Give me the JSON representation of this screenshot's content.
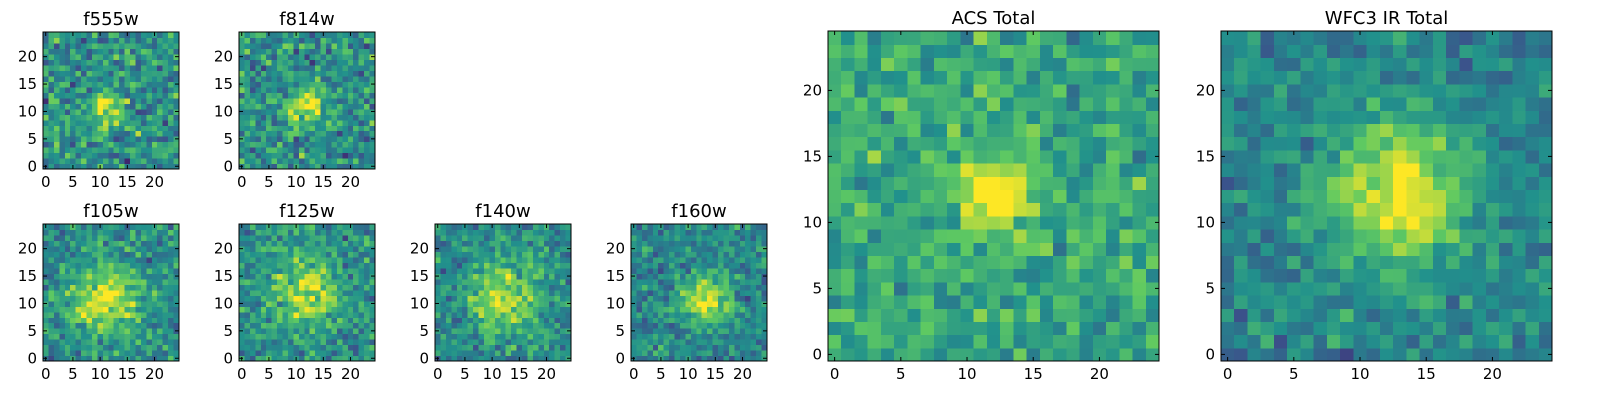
{
  "figure": {
    "colormap": "viridis",
    "colormap_stops": [
      "#440154",
      "#3b528b",
      "#21918c",
      "#5ec962",
      "#fde725"
    ]
  },
  "chart_data": [
    {
      "id": "f555w",
      "type": "heatmap",
      "title": "f555w",
      "size": 25,
      "xlim": [
        0,
        24
      ],
      "ylim": [
        0,
        24
      ],
      "xticks": [
        0,
        5,
        10,
        15,
        20
      ],
      "yticks": [
        0,
        5,
        10,
        15,
        20
      ],
      "source_center": [
        11,
        11
      ],
      "source_sigma": 2.2,
      "source_peak": 0.4,
      "noise_center": 0.5,
      "noise_scale": 0.42,
      "seed": 11
    },
    {
      "id": "f814w",
      "type": "heatmap",
      "title": "f814w",
      "size": 25,
      "xlim": [
        0,
        24
      ],
      "ylim": [
        0,
        24
      ],
      "xticks": [
        0,
        5,
        10,
        15,
        20
      ],
      "yticks": [
        0,
        5,
        10,
        15,
        20
      ],
      "source_center": [
        12,
        11
      ],
      "source_sigma": 2.3,
      "source_peak": 0.45,
      "noise_center": 0.5,
      "noise_scale": 0.4,
      "seed": 23
    },
    {
      "id": "f105w",
      "type": "heatmap",
      "title": "f105w",
      "size": 25,
      "xlim": [
        0,
        24
      ],
      "ylim": [
        0,
        24
      ],
      "xticks": [
        0,
        5,
        10,
        15,
        20
      ],
      "yticks": [
        0,
        5,
        10,
        15,
        20
      ],
      "source_center": [
        11,
        11
      ],
      "source_sigma": 4.5,
      "source_peak": 0.45,
      "noise_center": 0.48,
      "noise_scale": 0.34,
      "seed": 37
    },
    {
      "id": "f125w",
      "type": "heatmap",
      "title": "f125w",
      "size": 25,
      "xlim": [
        0,
        24
      ],
      "ylim": [
        0,
        24
      ],
      "xticks": [
        0,
        5,
        10,
        15,
        20
      ],
      "yticks": [
        0,
        5,
        10,
        15,
        20
      ],
      "source_center": [
        12,
        12
      ],
      "source_sigma": 4.0,
      "source_peak": 0.4,
      "noise_center": 0.5,
      "noise_scale": 0.34,
      "seed": 41
    },
    {
      "id": "f140w",
      "type": "heatmap",
      "title": "f140w",
      "size": 25,
      "xlim": [
        0,
        24
      ],
      "ylim": [
        0,
        24
      ],
      "xticks": [
        0,
        5,
        10,
        15,
        20
      ],
      "yticks": [
        0,
        5,
        10,
        15,
        20
      ],
      "source_center": [
        12,
        11
      ],
      "source_sigma": 4.3,
      "source_peak": 0.42,
      "noise_center": 0.48,
      "noise_scale": 0.32,
      "seed": 53
    },
    {
      "id": "f160w",
      "type": "heatmap",
      "title": "f160w",
      "size": 25,
      "xlim": [
        0,
        24
      ],
      "ylim": [
        0,
        24
      ],
      "xticks": [
        0,
        5,
        10,
        15,
        20
      ],
      "yticks": [
        0,
        5,
        10,
        15,
        20
      ],
      "source_center": [
        13,
        11
      ],
      "source_sigma": 3.0,
      "source_peak": 0.5,
      "noise_center": 0.47,
      "noise_scale": 0.3,
      "seed": 67
    },
    {
      "id": "acs-total",
      "type": "heatmap",
      "title": "ACS Total",
      "size": 25,
      "xlim": [
        0,
        24
      ],
      "ylim": [
        0,
        24
      ],
      "xticks": [
        0,
        5,
        10,
        15,
        20
      ],
      "yticks": [
        0,
        5,
        10,
        15,
        20
      ],
      "source_center": [
        12,
        12
      ],
      "source_sigma": 1.8,
      "source_peak": 0.55,
      "noise_center": 0.6,
      "noise_scale": 0.3,
      "seed": 79
    },
    {
      "id": "wfc3-ir-total",
      "type": "heatmap",
      "title": "WFC3 IR Total",
      "size": 25,
      "xlim": [
        0,
        24
      ],
      "ylim": [
        0,
        24
      ],
      "xticks": [
        0,
        5,
        10,
        15,
        20
      ],
      "yticks": [
        0,
        5,
        10,
        15,
        20
      ],
      "source_center": [
        13,
        12
      ],
      "source_sigma": 3.6,
      "source_peak": 0.55,
      "noise_center": 0.45,
      "noise_scale": 0.25,
      "seed": 97
    }
  ]
}
